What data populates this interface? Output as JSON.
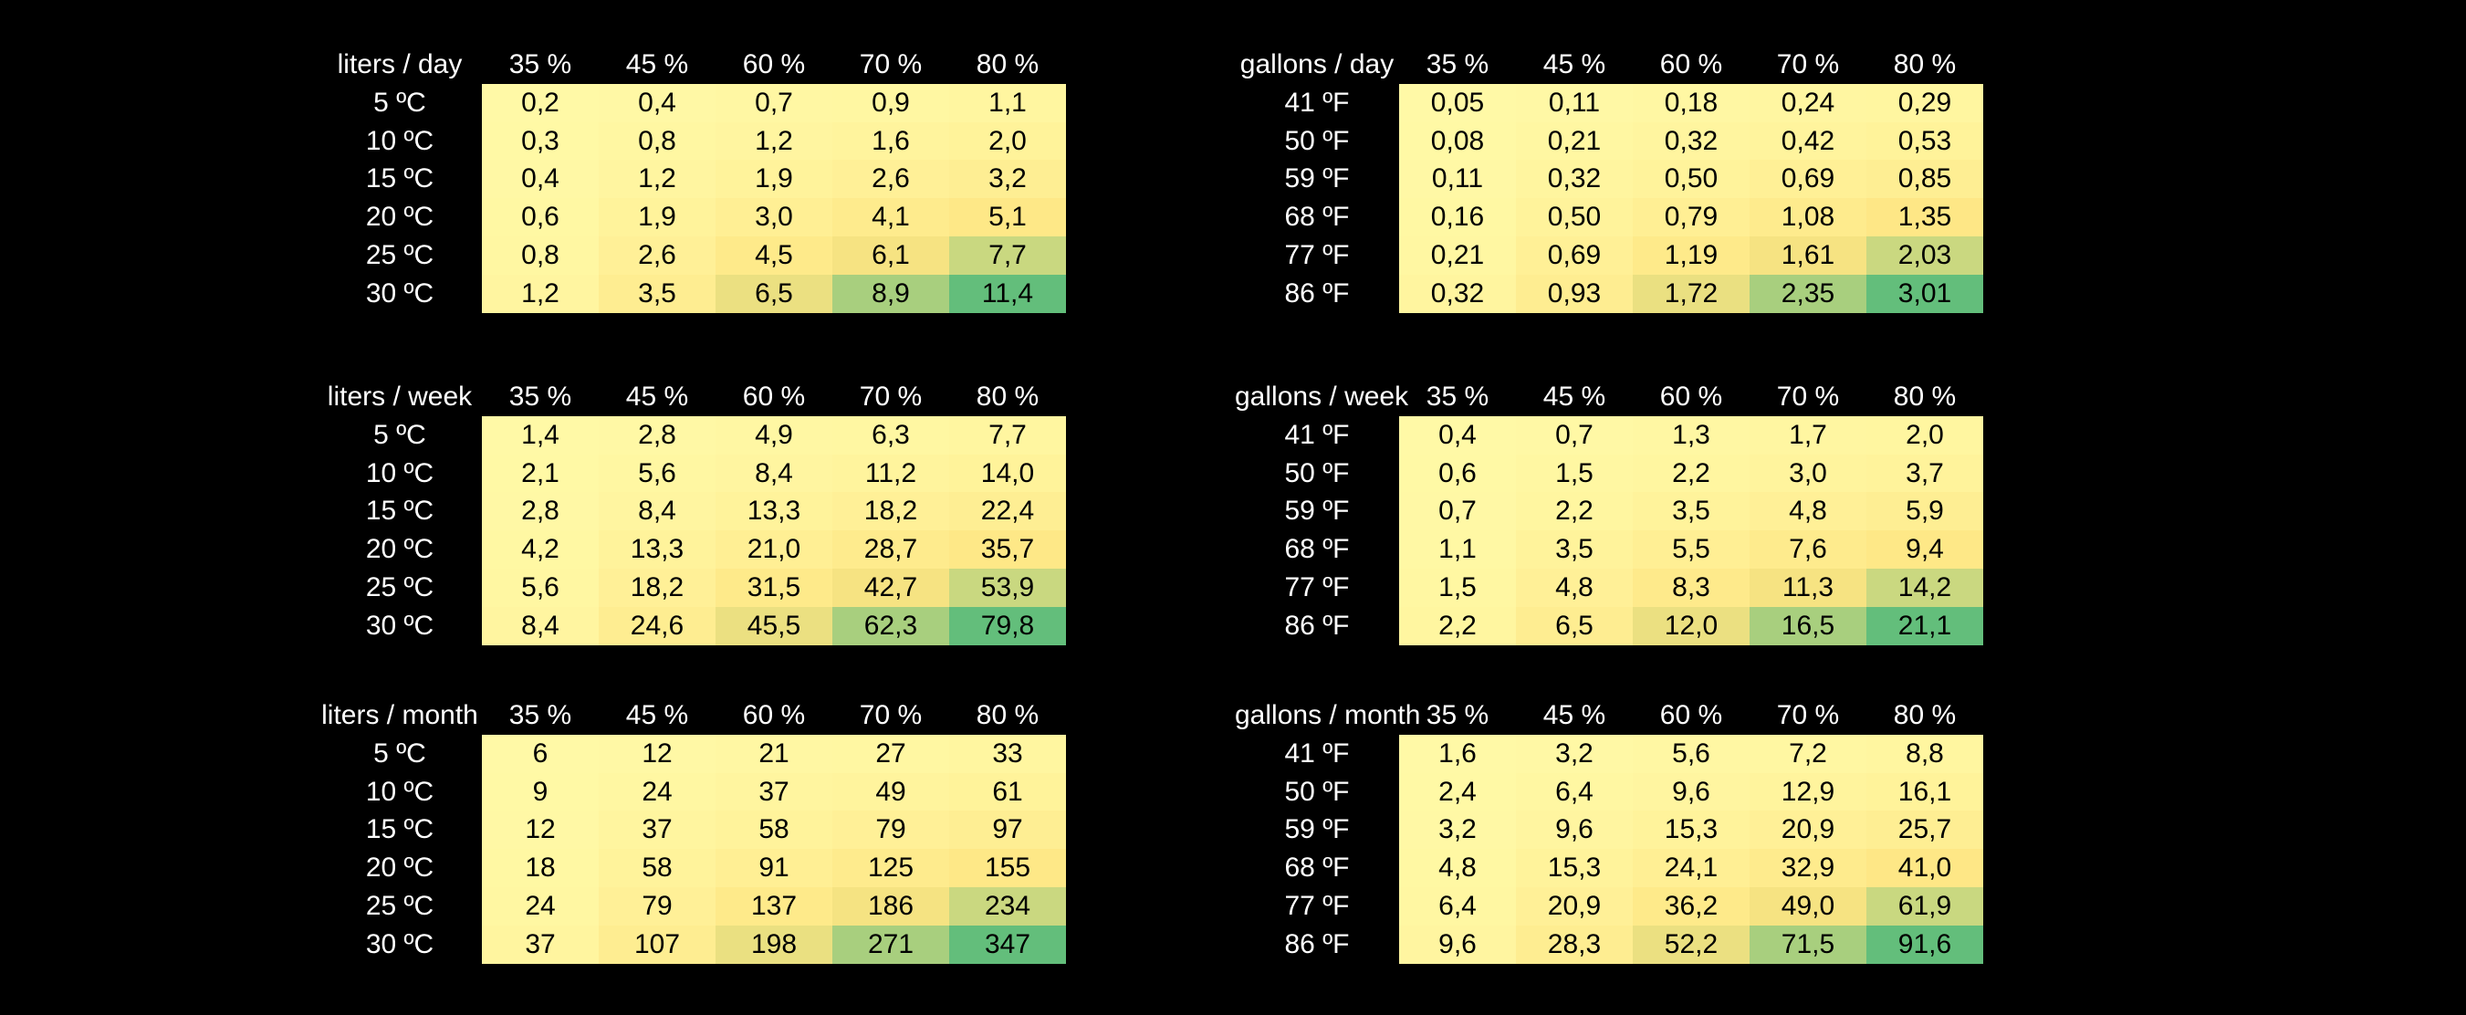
{
  "chart_data": [
    {
      "type": "heatmap",
      "corner_label": "liters / day",
      "columns": [
        "35 %",
        "45 %",
        "60 %",
        "70 %",
        "80 %"
      ],
      "rows": [
        "5 ºC",
        "10 ºC",
        "15 ºC",
        "20 ºC",
        "25 ºC",
        "30 ºC"
      ],
      "values": [
        [
          "0,2",
          "0,4",
          "0,7",
          "0,9",
          "1,1"
        ],
        [
          "0,3",
          "0,8",
          "1,2",
          "1,6",
          "2,0"
        ],
        [
          "0,4",
          "1,2",
          "1,9",
          "2,6",
          "3,2"
        ],
        [
          "0,6",
          "1,9",
          "3,0",
          "4,1",
          "5,1"
        ],
        [
          "0,8",
          "2,6",
          "4,5",
          "6,1",
          "7,7"
        ],
        [
          "1,2",
          "3,5",
          "6,5",
          "8,9",
          "11,4"
        ]
      ]
    },
    {
      "type": "heatmap",
      "corner_label": "gallons / day",
      "columns": [
        "35 %",
        "45 %",
        "60 %",
        "70 %",
        "80 %"
      ],
      "rows": [
        "41 ºF",
        "50 ºF",
        "59 ºF",
        "68 ºF",
        "77 ºF",
        "86 ºF"
      ],
      "values": [
        [
          "0,05",
          "0,11",
          "0,18",
          "0,24",
          "0,29"
        ],
        [
          "0,08",
          "0,21",
          "0,32",
          "0,42",
          "0,53"
        ],
        [
          "0,11",
          "0,32",
          "0,50",
          "0,69",
          "0,85"
        ],
        [
          "0,16",
          "0,50",
          "0,79",
          "1,08",
          "1,35"
        ],
        [
          "0,21",
          "0,69",
          "1,19",
          "1,61",
          "2,03"
        ],
        [
          "0,32",
          "0,93",
          "1,72",
          "2,35",
          "3,01"
        ]
      ]
    },
    {
      "type": "heatmap",
      "corner_label": "liters / week",
      "columns": [
        "35 %",
        "45 %",
        "60 %",
        "70 %",
        "80 %"
      ],
      "rows": [
        "5 ºC",
        "10 ºC",
        "15 ºC",
        "20 ºC",
        "25 ºC",
        "30 ºC"
      ],
      "values": [
        [
          "1,4",
          "2,8",
          "4,9",
          "6,3",
          "7,7"
        ],
        [
          "2,1",
          "5,6",
          "8,4",
          "11,2",
          "14,0"
        ],
        [
          "2,8",
          "8,4",
          "13,3",
          "18,2",
          "22,4"
        ],
        [
          "4,2",
          "13,3",
          "21,0",
          "28,7",
          "35,7"
        ],
        [
          "5,6",
          "18,2",
          "31,5",
          "42,7",
          "53,9"
        ],
        [
          "8,4",
          "24,6",
          "45,5",
          "62,3",
          "79,8"
        ]
      ]
    },
    {
      "type": "heatmap",
      "corner_label": "gallons / week",
      "columns": [
        "35 %",
        "45 %",
        "60 %",
        "70 %",
        "80 %"
      ],
      "rows": [
        "41 ºF",
        "50 ºF",
        "59 ºF",
        "68 ºF",
        "77 ºF",
        "86 ºF"
      ],
      "values": [
        [
          "0,4",
          "0,7",
          "1,3",
          "1,7",
          "2,0"
        ],
        [
          "0,6",
          "1,5",
          "2,2",
          "3,0",
          "3,7"
        ],
        [
          "0,7",
          "2,2",
          "3,5",
          "4,8",
          "5,9"
        ],
        [
          "1,1",
          "3,5",
          "5,5",
          "7,6",
          "9,4"
        ],
        [
          "1,5",
          "4,8",
          "8,3",
          "11,3",
          "14,2"
        ],
        [
          "2,2",
          "6,5",
          "12,0",
          "16,5",
          "21,1"
        ]
      ]
    },
    {
      "type": "heatmap",
      "corner_label": "liters / month",
      "columns": [
        "35 %",
        "45 %",
        "60 %",
        "70 %",
        "80 %"
      ],
      "rows": [
        "5 ºC",
        "10 ºC",
        "15 ºC",
        "20 ºC",
        "25 ºC",
        "30 ºC"
      ],
      "values": [
        [
          "6",
          "12",
          "21",
          "27",
          "33"
        ],
        [
          "9",
          "24",
          "37",
          "49",
          "61"
        ],
        [
          "12",
          "37",
          "58",
          "79",
          "97"
        ],
        [
          "18",
          "58",
          "91",
          "125",
          "155"
        ],
        [
          "24",
          "79",
          "137",
          "186",
          "234"
        ],
        [
          "37",
          "107",
          "198",
          "271",
          "347"
        ]
      ]
    },
    {
      "type": "heatmap",
      "corner_label": "gallons / month",
      "columns": [
        "35 %",
        "45 %",
        "60 %",
        "70 %",
        "80 %"
      ],
      "rows": [
        "41 ºF",
        "50 ºF",
        "59 ºF",
        "68 ºF",
        "77 ºF",
        "86 ºF"
      ],
      "values": [
        [
          "1,6",
          "3,2",
          "5,6",
          "7,2",
          "8,8"
        ],
        [
          "2,4",
          "6,4",
          "9,6",
          "12,9",
          "16,1"
        ],
        [
          "3,2",
          "9,6",
          "15,3",
          "20,9",
          "25,7"
        ],
        [
          "4,8",
          "15,3",
          "24,1",
          "32,9",
          "41,0"
        ],
        [
          "6,4",
          "20,9",
          "36,2",
          "49,0",
          "61,9"
        ],
        [
          "9,6",
          "28,3",
          "52,2",
          "71,5",
          "91,6"
        ]
      ]
    }
  ],
  "colors": {
    "low": "#fff9a6",
    "mid": "#fee582",
    "high": "#63be7b",
    "page_background": "#000000",
    "header_text": "#ffffff",
    "cell_text": "#000000"
  }
}
